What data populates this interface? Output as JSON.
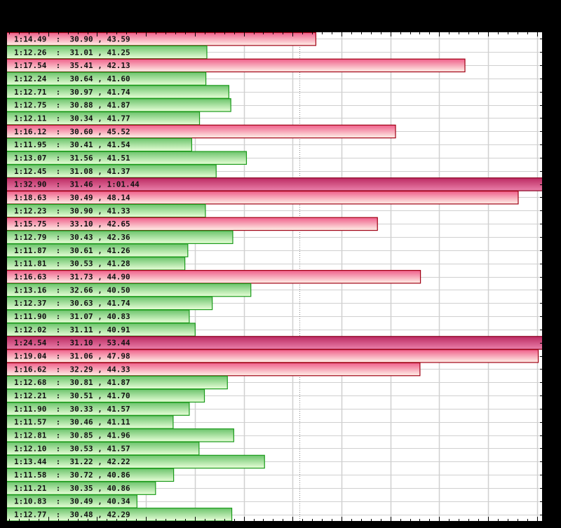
{
  "chart_data": {
    "type": "bar",
    "orientation": "horizontal",
    "title": "",
    "xlabel": "",
    "ylabel": "",
    "x_unit": "lap time (seconds)",
    "xlim": [
      68.13,
      79.1
    ],
    "major_tick_every": 1,
    "minor_ticks_per_major": 5,
    "grid": true,
    "reference_line": 74.14,
    "legend": [],
    "colors": {
      "fast": {
        "top": "#6cc46c",
        "bottom": "#e8ffd8",
        "border": "#1a9a1a"
      },
      "slow": {
        "top": "#ef5f8a",
        "bottom": "#fff1e8",
        "border": "#a00014"
      },
      "very_slow": {
        "top": "#bc2a62",
        "bottom": "#ea80aa",
        "border": "#8a0020"
      }
    },
    "rows": [
      {
        "label": "1:14.49  :  30.90 , 43.59",
        "lap": 74.49,
        "s1": 30.9,
        "s2": 43.59,
        "class": "slow"
      },
      {
        "label": "1:12.26  :  31.01 , 41.25",
        "lap": 72.26,
        "s1": 31.01,
        "s2": 41.25,
        "class": "fast"
      },
      {
        "label": "1:17.54  :  35.41 , 42.13",
        "lap": 77.54,
        "s1": 35.41,
        "s2": 42.13,
        "class": "slow"
      },
      {
        "label": "1:12.24  :  30.64 , 41.60",
        "lap": 72.24,
        "s1": 30.64,
        "s2": 41.6,
        "class": "fast"
      },
      {
        "label": "1:12.71  :  30.97 , 41.74",
        "lap": 72.71,
        "s1": 30.97,
        "s2": 41.74,
        "class": "fast"
      },
      {
        "label": "1:12.75  :  30.88 , 41.87",
        "lap": 72.75,
        "s1": 30.88,
        "s2": 41.87,
        "class": "fast"
      },
      {
        "label": "1:12.11  :  30.34 , 41.77",
        "lap": 72.11,
        "s1": 30.34,
        "s2": 41.77,
        "class": "fast"
      },
      {
        "label": "1:16.12  :  30.60 , 45.52",
        "lap": 76.12,
        "s1": 30.6,
        "s2": 45.52,
        "class": "slow"
      },
      {
        "label": "1:11.95  :  30.41 , 41.54",
        "lap": 71.95,
        "s1": 30.41,
        "s2": 41.54,
        "class": "fast"
      },
      {
        "label": "1:13.07  :  31.56 , 41.51",
        "lap": 73.07,
        "s1": 31.56,
        "s2": 41.51,
        "class": "fast"
      },
      {
        "label": "1:12.45  :  31.08 , 41.37",
        "lap": 72.45,
        "s1": 31.08,
        "s2": 41.37,
        "class": "fast"
      },
      {
        "label": "1:32.90  :  31.46 , 1:01.44",
        "lap": 92.9,
        "s1": 31.46,
        "s2": 61.44,
        "class": "very_slow"
      },
      {
        "label": "1:18.63  :  30.49 , 48.14",
        "lap": 78.63,
        "s1": 30.49,
        "s2": 48.14,
        "class": "slow"
      },
      {
        "label": "1:12.23  :  30.90 , 41.33",
        "lap": 72.23,
        "s1": 30.9,
        "s2": 41.33,
        "class": "fast"
      },
      {
        "label": "1:15.75  :  33.10 , 42.65",
        "lap": 75.75,
        "s1": 33.1,
        "s2": 42.65,
        "class": "slow"
      },
      {
        "label": "1:12.79  :  30.43 , 42.36",
        "lap": 72.79,
        "s1": 30.43,
        "s2": 42.36,
        "class": "fast"
      },
      {
        "label": "1:11.87  :  30.61 , 41.26",
        "lap": 71.87,
        "s1": 30.61,
        "s2": 41.26,
        "class": "fast"
      },
      {
        "label": "1:11.81  :  30.53 , 41.28",
        "lap": 71.81,
        "s1": 30.53,
        "s2": 41.28,
        "class": "fast"
      },
      {
        "label": "1:16.63  :  31.73 , 44.90",
        "lap": 76.63,
        "s1": 31.73,
        "s2": 44.9,
        "class": "slow"
      },
      {
        "label": "1:13.16  :  32.66 , 40.50",
        "lap": 73.16,
        "s1": 32.66,
        "s2": 40.5,
        "class": "fast"
      },
      {
        "label": "1:12.37  :  30.63 , 41.74",
        "lap": 72.37,
        "s1": 30.63,
        "s2": 41.74,
        "class": "fast"
      },
      {
        "label": "1:11.90  :  31.07 , 40.83",
        "lap": 71.9,
        "s1": 31.07,
        "s2": 40.83,
        "class": "fast"
      },
      {
        "label": "1:12.02  :  31.11 , 40.91",
        "lap": 72.02,
        "s1": 31.11,
        "s2": 40.91,
        "class": "fast"
      },
      {
        "label": "1:24.54  :  31.10 , 53.44",
        "lap": 84.54,
        "s1": 31.1,
        "s2": 53.44,
        "class": "very_slow"
      },
      {
        "label": "1:19.04  :  31.06 , 47.98",
        "lap": 79.04,
        "s1": 31.06,
        "s2": 47.98,
        "class": "slow"
      },
      {
        "label": "1:16.62  :  32.29 , 44.33",
        "lap": 76.62,
        "s1": 32.29,
        "s2": 44.33,
        "class": "slow"
      },
      {
        "label": "1:12.68  :  30.81 , 41.87",
        "lap": 72.68,
        "s1": 30.81,
        "s2": 41.87,
        "class": "fast"
      },
      {
        "label": "1:12.21  :  30.51 , 41.70",
        "lap": 72.21,
        "s1": 30.51,
        "s2": 41.7,
        "class": "fast"
      },
      {
        "label": "1:11.90  :  30.33 , 41.57",
        "lap": 71.9,
        "s1": 30.33,
        "s2": 41.57,
        "class": "fast"
      },
      {
        "label": "1:11.57  :  30.46 , 41.11",
        "lap": 71.57,
        "s1": 30.46,
        "s2": 41.11,
        "class": "fast"
      },
      {
        "label": "1:12.81  :  30.85 , 41.96",
        "lap": 72.81,
        "s1": 30.85,
        "s2": 41.96,
        "class": "fast"
      },
      {
        "label": "1:12.10  :  30.53 , 41.57",
        "lap": 72.1,
        "s1": 30.53,
        "s2": 41.57,
        "class": "fast"
      },
      {
        "label": "1:13.44  :  31.22 , 42.22",
        "lap": 73.44,
        "s1": 31.22,
        "s2": 42.22,
        "class": "fast"
      },
      {
        "label": "1:11.58  :  30.72 , 40.86",
        "lap": 71.58,
        "s1": 30.72,
        "s2": 40.86,
        "class": "fast"
      },
      {
        "label": "1:11.21  :  30.35 , 40.86",
        "lap": 71.21,
        "s1": 30.35,
        "s2": 40.86,
        "class": "fast"
      },
      {
        "label": "1:10.83  :  30.49 , 40.34",
        "lap": 70.83,
        "s1": 30.49,
        "s2": 40.34,
        "class": "fast"
      },
      {
        "label": "1:12.77  :  30.48 , 42.29",
        "lap": 72.77,
        "s1": 30.48,
        "s2": 42.29,
        "class": "fast"
      }
    ]
  }
}
